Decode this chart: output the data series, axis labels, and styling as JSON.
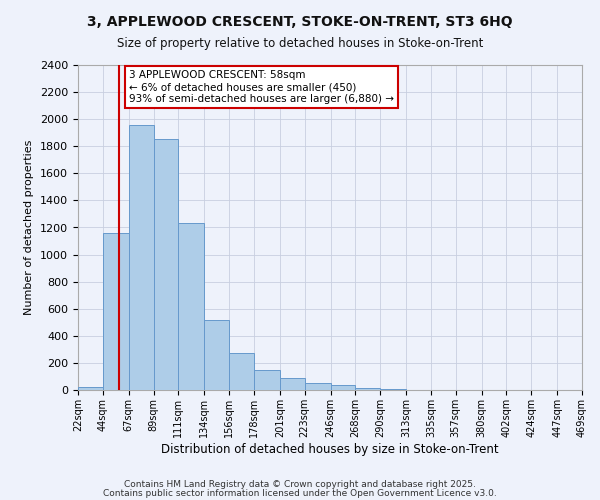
{
  "title": "3, APPLEWOOD CRESCENT, STOKE-ON-TRENT, ST3 6HQ",
  "subtitle": "Size of property relative to detached houses in Stoke-on-Trent",
  "xlabel": "Distribution of detached houses by size in Stoke-on-Trent",
  "ylabel": "Number of detached properties",
  "bin_edges": [
    22,
    44,
    67,
    89,
    111,
    134,
    156,
    178,
    201,
    223,
    246,
    268,
    290,
    313,
    335,
    357,
    380,
    402,
    424,
    447,
    469
  ],
  "bin_counts": [
    25,
    1160,
    1960,
    1850,
    1230,
    520,
    275,
    150,
    85,
    50,
    35,
    15,
    8,
    3,
    1,
    1,
    0,
    0,
    0,
    0
  ],
  "bar_color": "#aecde8",
  "bar_edge_color": "#6699cc",
  "red_line_x": 58,
  "annotation_title": "3 APPLEWOOD CRESCENT: 58sqm",
  "annotation_line1": "← 6% of detached houses are smaller (450)",
  "annotation_line2": "93% of semi-detached houses are larger (6,880) →",
  "annotation_box_color": "#ffffff",
  "annotation_box_edge": "#cc0000",
  "ylim": [
    0,
    2400
  ],
  "yticks": [
    0,
    200,
    400,
    600,
    800,
    1000,
    1200,
    1400,
    1600,
    1800,
    2000,
    2200,
    2400
  ],
  "footer1": "Contains HM Land Registry data © Crown copyright and database right 2025.",
  "footer2": "Contains public sector information licensed under the Open Government Licence v3.0.",
  "bg_color": "#eef2fb",
  "grid_color": "#c8cfe0"
}
